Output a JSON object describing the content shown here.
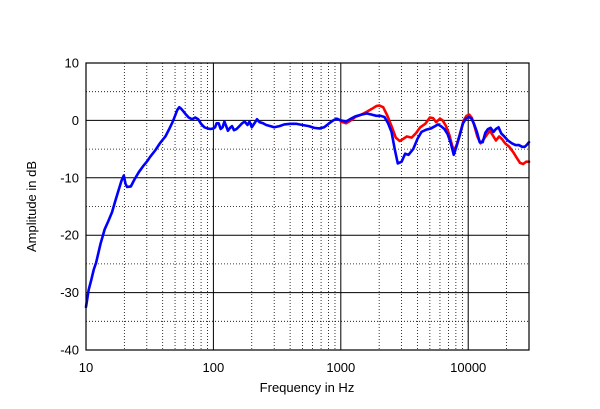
{
  "chart_data": {
    "type": "line",
    "xscale": "log",
    "xlim": [
      10,
      30000
    ],
    "ylim": [
      -40,
      10
    ],
    "xlabel": "Frequency in Hz",
    "ylabel": "Amplitude in dB",
    "x_tick_labels": [
      {
        "value": 10,
        "label": "10"
      },
      {
        "value": 100,
        "label": "100"
      },
      {
        "value": 1000,
        "label": "1000"
      },
      {
        "value": 10000,
        "label": "10000"
      }
    ],
    "y_tick_labels": [
      {
        "value": 10,
        "label": "10"
      },
      {
        "value": 0,
        "label": "0"
      },
      {
        "value": -10,
        "label": "-10"
      },
      {
        "value": -20,
        "label": "-20"
      },
      {
        "value": -30,
        "label": "-30"
      },
      {
        "value": -40,
        "label": "-40"
      }
    ],
    "grid": true,
    "legend": "none",
    "series": [
      {
        "color": "#ff0000",
        "points": [
          [
            1000,
            -0.2
          ],
          [
            1100,
            -0.5
          ],
          [
            1200,
            0.0
          ],
          [
            1300,
            0.6
          ],
          [
            1450,
            1.0
          ],
          [
            1600,
            1.5
          ],
          [
            1750,
            2.0
          ],
          [
            1900,
            2.5
          ],
          [
            2000,
            2.6
          ],
          [
            2150,
            2.3
          ],
          [
            2300,
            1.0
          ],
          [
            2500,
            -1.0
          ],
          [
            2700,
            -3.0
          ],
          [
            2900,
            -3.6
          ],
          [
            3100,
            -3.2
          ],
          [
            3300,
            -2.8
          ],
          [
            3600,
            -3.0
          ],
          [
            3900,
            -2.2
          ],
          [
            4200,
            -1.2
          ],
          [
            4600,
            -0.6
          ],
          [
            5000,
            0.5
          ],
          [
            5300,
            0.4
          ],
          [
            5600,
            -0.3
          ],
          [
            6000,
            0.3
          ],
          [
            6300,
            0.0
          ],
          [
            6700,
            -1.0
          ],
          [
            7100,
            -2.5
          ],
          [
            7500,
            -4.5
          ],
          [
            7800,
            -5.2
          ],
          [
            8200,
            -4.0
          ],
          [
            8700,
            -2.0
          ],
          [
            9200,
            0.0
          ],
          [
            9700,
            0.8
          ],
          [
            10200,
            1.0
          ],
          [
            10700,
            0.4
          ],
          [
            11200,
            -1.0
          ],
          [
            11800,
            -2.8
          ],
          [
            12500,
            -4.0
          ],
          [
            13300,
            -3.2
          ],
          [
            14000,
            -2.5
          ],
          [
            14800,
            -1.8
          ],
          [
            15500,
            -2.5
          ],
          [
            16500,
            -3.5
          ],
          [
            17500,
            -2.8
          ],
          [
            18500,
            -3.3
          ],
          [
            19500,
            -4.0
          ],
          [
            21000,
            -4.6
          ],
          [
            22500,
            -5.5
          ],
          [
            24000,
            -6.5
          ],
          [
            25500,
            -7.4
          ],
          [
            27000,
            -7.6
          ],
          [
            28500,
            -7.2
          ],
          [
            30000,
            -7.2
          ]
        ]
      },
      {
        "color": "#0000ff",
        "points": [
          [
            10,
            -32.5
          ],
          [
            10.5,
            -29.5
          ],
          [
            11,
            -27.8
          ],
          [
            11.5,
            -26.0
          ],
          [
            12,
            -24.8
          ],
          [
            13,
            -21.5
          ],
          [
            14,
            -19.0
          ],
          [
            15,
            -17.5
          ],
          [
            16,
            -16.0
          ],
          [
            17,
            -14.0
          ],
          [
            18,
            -12.2
          ],
          [
            19,
            -10.5
          ],
          [
            19.8,
            -9.6
          ],
          [
            20.4,
            -11.0
          ],
          [
            21,
            -11.6
          ],
          [
            22.5,
            -11.5
          ],
          [
            24,
            -10.3
          ],
          [
            26,
            -9.0
          ],
          [
            28,
            -8.0
          ],
          [
            30,
            -7.2
          ],
          [
            32,
            -6.3
          ],
          [
            35,
            -5.2
          ],
          [
            38,
            -4.0
          ],
          [
            42,
            -2.8
          ],
          [
            45,
            -1.5
          ],
          [
            48,
            -0.2
          ],
          [
            50,
            0.8
          ],
          [
            52,
            1.8
          ],
          [
            54,
            2.3
          ],
          [
            56,
            2.0
          ],
          [
            58,
            1.6
          ],
          [
            61,
            1.0
          ],
          [
            64,
            0.5
          ],
          [
            68,
            0.2
          ],
          [
            72,
            0.5
          ],
          [
            76,
            0.2
          ],
          [
            80,
            -0.6
          ],
          [
            85,
            -1.2
          ],
          [
            90,
            -1.4
          ],
          [
            95,
            -1.5
          ],
          [
            100,
            -1.4
          ],
          [
            103,
            -1.2
          ],
          [
            106,
            -0.5
          ],
          [
            110,
            -0.5
          ],
          [
            114,
            -1.5
          ],
          [
            118,
            -1.2
          ],
          [
            122,
            -0.2
          ],
          [
            126,
            -1.0
          ],
          [
            130,
            -1.8
          ],
          [
            135,
            -1.3
          ],
          [
            140,
            -1.0
          ],
          [
            145,
            -1.7
          ],
          [
            152,
            -1.5
          ],
          [
            160,
            -1.0
          ],
          [
            168,
            -0.5
          ],
          [
            176,
            -0.2
          ],
          [
            185,
            -0.8
          ],
          [
            192,
            -0.2
          ],
          [
            200,
            -1.2
          ],
          [
            210,
            -0.5
          ],
          [
            220,
            0.2
          ],
          [
            230,
            -0.3
          ],
          [
            245,
            -0.5
          ],
          [
            260,
            -0.8
          ],
          [
            280,
            -1.0
          ],
          [
            300,
            -1.2
          ],
          [
            330,
            -1.0
          ],
          [
            360,
            -0.7
          ],
          [
            400,
            -0.6
          ],
          [
            450,
            -0.6
          ],
          [
            500,
            -0.8
          ],
          [
            560,
            -1.0
          ],
          [
            620,
            -1.3
          ],
          [
            680,
            -1.4
          ],
          [
            740,
            -1.2
          ],
          [
            800,
            -0.6
          ],
          [
            870,
            0.0
          ],
          [
            930,
            0.3
          ],
          [
            1000,
            0.0
          ],
          [
            1100,
            -0.2
          ],
          [
            1200,
            0.3
          ],
          [
            1300,
            0.7
          ],
          [
            1450,
            1.0
          ],
          [
            1600,
            1.2
          ],
          [
            1750,
            1.0
          ],
          [
            1900,
            0.8
          ],
          [
            2050,
            0.8
          ],
          [
            2200,
            0.6
          ],
          [
            2350,
            -0.5
          ],
          [
            2500,
            -2.0
          ],
          [
            2650,
            -5.0
          ],
          [
            2800,
            -7.5
          ],
          [
            3000,
            -7.2
          ],
          [
            3200,
            -5.8
          ],
          [
            3400,
            -6.0
          ],
          [
            3700,
            -5.0
          ],
          [
            4000,
            -3.2
          ],
          [
            4300,
            -2.0
          ],
          [
            4700,
            -1.6
          ],
          [
            5100,
            -1.4
          ],
          [
            5500,
            -1.0
          ],
          [
            5800,
            -0.7
          ],
          [
            6100,
            -1.0
          ],
          [
            6500,
            -1.5
          ],
          [
            6900,
            -2.4
          ],
          [
            7300,
            -4.0
          ],
          [
            7700,
            -6.0
          ],
          [
            8100,
            -4.5
          ],
          [
            8600,
            -2.5
          ],
          [
            9100,
            -0.5
          ],
          [
            9600,
            0.3
          ],
          [
            10100,
            0.6
          ],
          [
            10600,
            0.3
          ],
          [
            11100,
            -0.6
          ],
          [
            11700,
            -2.0
          ],
          [
            12300,
            -3.8
          ],
          [
            13000,
            -3.8
          ],
          [
            13600,
            -2.2
          ],
          [
            14300,
            -1.5
          ],
          [
            15000,
            -1.3
          ],
          [
            15800,
            -2.0
          ],
          [
            16500,
            -1.5
          ],
          [
            17300,
            -1.2
          ],
          [
            18200,
            -2.3
          ],
          [
            19200,
            -2.8
          ],
          [
            20500,
            -3.5
          ],
          [
            22000,
            -4.0
          ],
          [
            23500,
            -4.3
          ],
          [
            25000,
            -4.3
          ],
          [
            26500,
            -4.6
          ],
          [
            27800,
            -4.6
          ],
          [
            29000,
            -4.2
          ],
          [
            30000,
            -3.8
          ]
        ]
      }
    ]
  }
}
